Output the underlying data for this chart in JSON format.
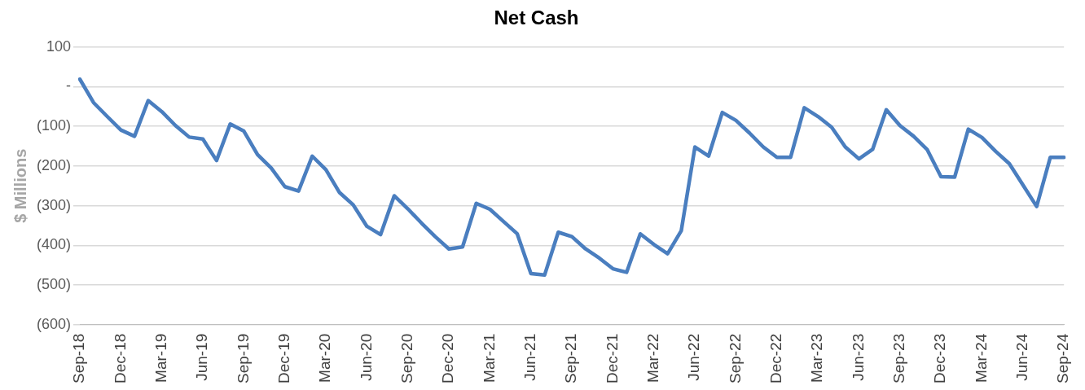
{
  "chart_data": {
    "type": "line",
    "title": "Net Cash",
    "ylabel": "$ Millions",
    "categories": [
      "Sep-18",
      null,
      null,
      "Dec-18",
      null,
      null,
      "Mar-19",
      null,
      null,
      "Jun-19",
      null,
      null,
      "Sep-19",
      null,
      null,
      "Dec-19",
      null,
      null,
      "Mar-20",
      null,
      null,
      "Jun-20",
      null,
      null,
      "Sep-20",
      null,
      null,
      "Dec-20",
      null,
      null,
      "Mar-21",
      null,
      null,
      "Jun-21",
      null,
      null,
      "Sep-21",
      null,
      null,
      "Dec-21",
      null,
      null,
      "Mar-22",
      null,
      null,
      "Jun-22",
      null,
      null,
      "Sep-22",
      null,
      null,
      "Dec-22",
      null,
      null,
      "Mar-23",
      null,
      null,
      "Jun-23",
      null,
      null,
      "Sep-23",
      null,
      null,
      "Dec-23",
      null,
      null,
      "Mar-24",
      null,
      null,
      "Jun-24",
      null,
      null,
      "Sep-24"
    ],
    "series": [
      {
        "color": "#4a7ebf",
        "values": [
          19,
          -40,
          -75,
          -109,
          -125,
          -35,
          -63,
          -98,
          -127,
          -132,
          -186,
          -94,
          -112,
          -171,
          -205,
          -252,
          -263,
          -175,
          -209,
          -267,
          -298,
          -352,
          -373,
          -275,
          -308,
          -344,
          -378,
          -409,
          -404,
          -294,
          -309,
          -340,
          -371,
          -471,
          -475,
          -367,
          -378,
          -409,
          -432,
          -459,
          -468,
          -371,
          -398,
          -421,
          -363,
          -152,
          -175,
          -65,
          -85,
          -117,
          -152,
          -178,
          -178,
          -53,
          -75,
          -102,
          -152,
          -182,
          -158,
          -58,
          -98,
          -125,
          -159,
          -227,
          -228,
          -107,
          -128,
          -163,
          -194,
          -248,
          -302,
          -178,
          -178
        ]
      }
    ],
    "ylim": [
      -600,
      100
    ],
    "yticks": [
      {
        "value": -600,
        "label": "(600)"
      },
      {
        "value": -500,
        "label": "(500)"
      },
      {
        "value": -400,
        "label": "(400)"
      },
      {
        "value": -300,
        "label": "(300)"
      },
      {
        "value": -200,
        "label": "(200)"
      },
      {
        "value": -100,
        "label": "(100)"
      },
      {
        "value": 0,
        "label": "-"
      },
      100
    ],
    "grid": "y",
    "marker": "none",
    "line_style": "solid"
  }
}
